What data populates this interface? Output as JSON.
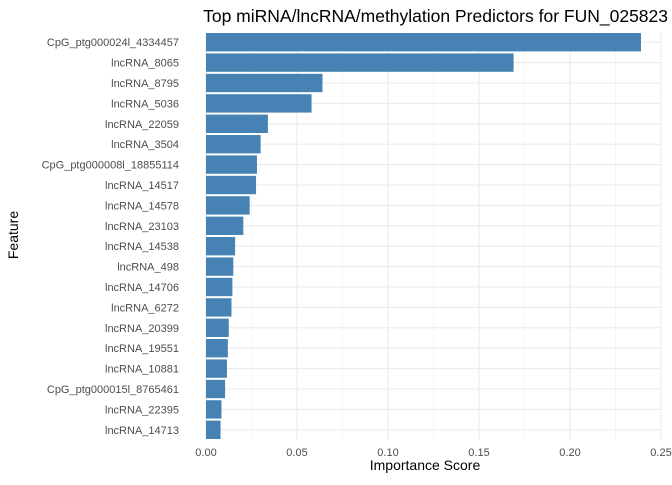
{
  "chart_data": {
    "type": "bar",
    "orientation": "horizontal",
    "title": "Top miRNA/lncRNA/methylation Predictors for FUN_025823",
    "xlabel": "Importance Score",
    "ylabel": "Feature",
    "xlim": [
      0,
      0.25
    ],
    "xticks": [
      0.0,
      0.05,
      0.1,
      0.15,
      0.2,
      0.25
    ],
    "xtick_labels": [
      "0.00",
      "0.05",
      "0.10",
      "0.15",
      "0.20",
      "0.25"
    ],
    "grid": true,
    "bar_color": "#4682b4",
    "categories": [
      "CpG_ptg000024l_4334457",
      "lncRNA_8065",
      "lncRNA_8795",
      "lncRNA_5036",
      "lncRNA_22059",
      "lncRNA_3504",
      "CpG_ptg000008l_18855114",
      "lncRNA_14517",
      "lncRNA_14578",
      "lncRNA_23103",
      "lncRNA_14538",
      "lncRNA_498",
      "lncRNA_14706",
      "lncRNA_6272",
      "lncRNA_20399",
      "lncRNA_19551",
      "lncRNA_10881",
      "CpG_ptg000015l_8765461",
      "lncRNA_22395",
      "lncRNA_14713"
    ],
    "values": [
      0.239,
      0.169,
      0.064,
      0.058,
      0.034,
      0.03,
      0.028,
      0.0275,
      0.024,
      0.0205,
      0.016,
      0.015,
      0.0145,
      0.014,
      0.0125,
      0.012,
      0.0115,
      0.0105,
      0.0085,
      0.008
    ]
  }
}
